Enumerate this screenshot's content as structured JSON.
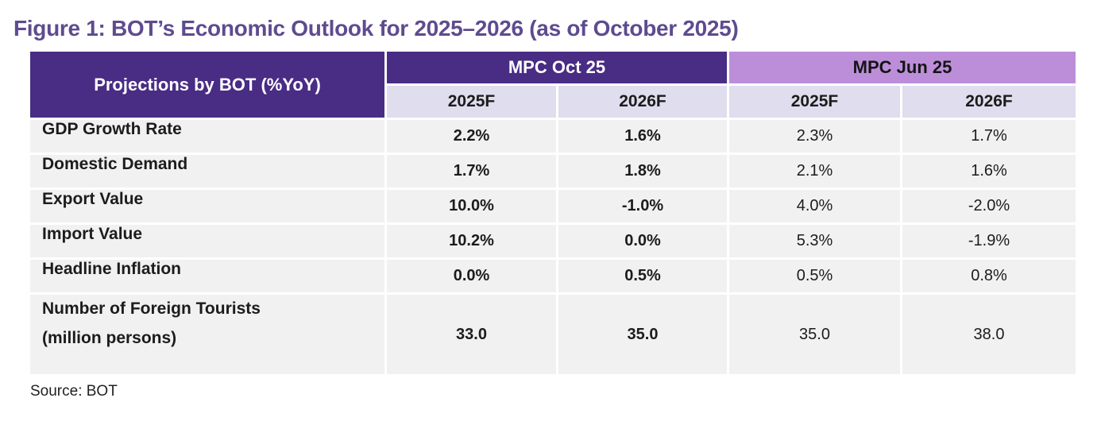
{
  "title": "Figure 1: BOT’s Economic Outlook for 2025–2026 (as of October 2025)",
  "source": "Source: BOT",
  "colors": {
    "title_purple": "#5e4b8f",
    "header_dark_purple": "#492c84",
    "header_light_purple": "#bc8ed9",
    "subheader_lavender": "#dfddee",
    "cell_gray": "#f2f1f2"
  },
  "table": {
    "corner_header": "Projections by BOT (%YoY)",
    "groups": [
      {
        "label": "MPC Oct 25",
        "columns": [
          "2025F",
          "2026F"
        ]
      },
      {
        "label": "MPC Jun 25",
        "columns": [
          "2025F",
          "2026F"
        ]
      }
    ],
    "rows": [
      {
        "label": "GDP Growth Rate",
        "values": [
          "2.2%",
          "1.6%",
          "2.3%",
          "1.7%"
        ]
      },
      {
        "label": "Domestic Demand",
        "values": [
          "1.7%",
          "1.8%",
          "2.1%",
          "1.6%"
        ]
      },
      {
        "label": "Export Value",
        "values": [
          "10.0%",
          "-1.0%",
          "4.0%",
          "-2.0%"
        ]
      },
      {
        "label": "Import Value",
        "values": [
          "10.2%",
          "0.0%",
          "5.3%",
          "-1.9%"
        ]
      },
      {
        "label": "Headline Inflation",
        "values": [
          "0.0%",
          "0.5%",
          "0.5%",
          "0.8%"
        ]
      },
      {
        "label": "Number of Foreign Tourists",
        "label_line2": "(million persons)",
        "values": [
          "33.0",
          "35.0",
          "35.0",
          "38.0"
        ]
      }
    ]
  },
  "chart_data": {
    "type": "table",
    "title": "Figure 1: BOT’s Economic Outlook for 2025–2026 (as of October 2025)",
    "column_groups": [
      "MPC Oct 25",
      "MPC Jun 25"
    ],
    "columns": [
      "Projections by BOT (%YoY)",
      "MPC Oct 25 2025F",
      "MPC Oct 25 2026F",
      "MPC Jun 25 2025F",
      "MPC Jun 25 2026F"
    ],
    "rows": [
      [
        "GDP Growth Rate",
        "2.2%",
        "1.6%",
        "2.3%",
        "1.7%"
      ],
      [
        "Domestic Demand",
        "1.7%",
        "1.8%",
        "2.1%",
        "1.6%"
      ],
      [
        "Export Value",
        "10.0%",
        "-1.0%",
        "4.0%",
        "-2.0%"
      ],
      [
        "Import Value",
        "10.2%",
        "0.0%",
        "5.3%",
        "-1.9%"
      ],
      [
        "Headline Inflation",
        "0.0%",
        "0.5%",
        "0.5%",
        "0.8%"
      ],
      [
        "Number of Foreign Tourists (million persons)",
        "33.0",
        "35.0",
        "35.0",
        "38.0"
      ]
    ],
    "source": "BOT"
  }
}
